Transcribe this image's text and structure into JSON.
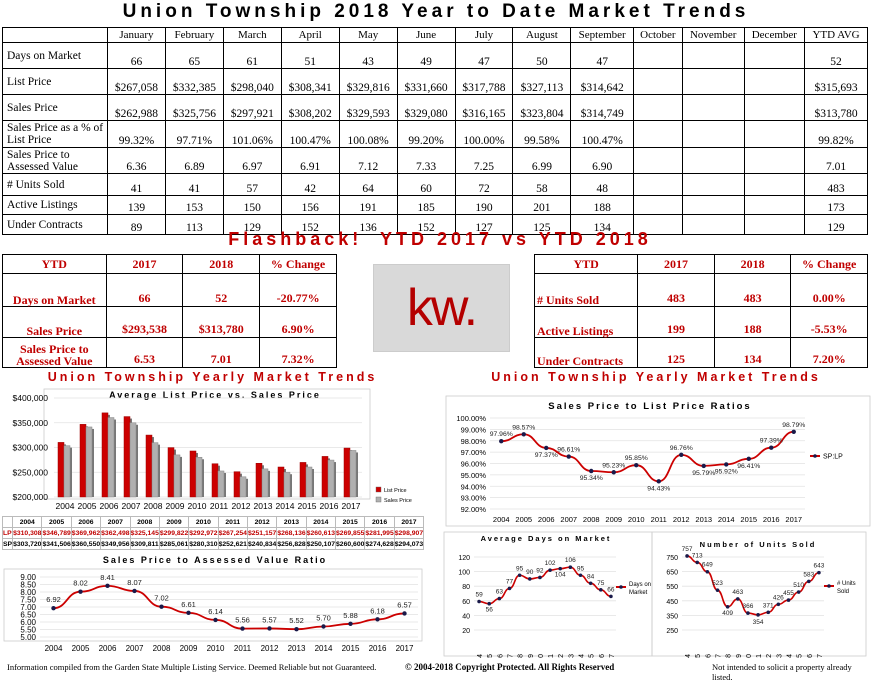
{
  "main_title": "Union Township 2018 Year to Date Market Trends",
  "main_table": {
    "months": [
      "January",
      "February",
      "March",
      "April",
      "May",
      "June",
      "July",
      "August",
      "September",
      "October",
      "November",
      "December",
      "YTD AVG"
    ],
    "rows": [
      {
        "label": "Days on Market",
        "values": [
          "66",
          "65",
          "61",
          "51",
          "43",
          "49",
          "47",
          "50",
          "47",
          "",
          "",
          "",
          "52"
        ]
      },
      {
        "label": "List Price",
        "values": [
          "$267,058",
          "$332,385",
          "$298,040",
          "$308,341",
          "$329,816",
          "$331,660",
          "$317,788",
          "$327,113",
          "$314,642",
          "",
          "",
          "",
          "$315,693"
        ]
      },
      {
        "label": "Sales Price",
        "values": [
          "$262,988",
          "$325,756",
          "$297,921",
          "$308,202",
          "$329,593",
          "$329,080",
          "$316,165",
          "$323,804",
          "$314,749",
          "",
          "",
          "",
          "$313,780"
        ]
      },
      {
        "label": "Sales Price as a % of List Price",
        "values": [
          "99.32%",
          "97.71%",
          "101.06%",
          "100.47%",
          "100.08%",
          "99.20%",
          "100.00%",
          "99.58%",
          "100.47%",
          "",
          "",
          "",
          "99.82%"
        ]
      },
      {
        "label": "Sales Price to Assessed Value",
        "values": [
          "6.36",
          "6.89",
          "6.97",
          "6.91",
          "7.12",
          "7.33",
          "7.25",
          "6.99",
          "6.90",
          "",
          "",
          "",
          "7.01"
        ]
      },
      {
        "label": "# Units Sold",
        "values": [
          "41",
          "41",
          "57",
          "42",
          "64",
          "60",
          "72",
          "58",
          "48",
          "",
          "",
          "",
          "483"
        ]
      },
      {
        "label": "Active Listings",
        "values": [
          "139",
          "153",
          "150",
          "156",
          "191",
          "185",
          "190",
          "201",
          "188",
          "",
          "",
          "",
          "173"
        ]
      },
      {
        "label": "Under Contracts",
        "values": [
          "89",
          "113",
          "129",
          "152",
          "136",
          "152",
          "127",
          "125",
          "134",
          "",
          "",
          "",
          "129"
        ]
      }
    ]
  },
  "flashback": {
    "title": "Flashback!  YTD 2017 vs YTD 2018",
    "headers": [
      "YTD",
      "2017",
      "2018",
      "% Change"
    ],
    "left_rows": [
      {
        "label": "Days on Market",
        "v2017": "66",
        "v2018": "52",
        "change": "-20.77%"
      },
      {
        "label": "Sales Price",
        "v2017": "$293,538",
        "v2018": "$313,780",
        "change": "6.90%"
      },
      {
        "label": "Sales Price to Assessed Value",
        "v2017": "6.53",
        "v2018": "7.01",
        "change": "7.32%"
      }
    ],
    "right_rows": [
      {
        "label": "# Units Sold",
        "v2017": "483",
        "v2018": "483",
        "change": "0.00%"
      },
      {
        "label": "Active Listings",
        "v2017": "199",
        "v2018": "188",
        "change": "-5.53%"
      },
      {
        "label": "Under Contracts",
        "v2017": "125",
        "v2018": "134",
        "change": "7.20%"
      }
    ],
    "logo_text": "kw."
  },
  "section_titles": {
    "left": "Union Township Yearly Market Trends",
    "right": "Union Township Yearly Market Trends"
  },
  "chart_data": [
    {
      "type": "bar",
      "title": "Average List Price vs. Sales Price",
      "categories": [
        "2004",
        "2005",
        "2006",
        "2007",
        "2008",
        "2009",
        "2010",
        "2011",
        "2012",
        "2013",
        "2014",
        "2015",
        "2016",
        "2017"
      ],
      "series": [
        {
          "name": "List Price",
          "values": [
            310308,
            346789,
            369962,
            362498,
            325145,
            299822,
            292972,
            267254,
            251157,
            268136,
            260613,
            269855,
            281995,
            298907
          ],
          "display": [
            "$310,308",
            "$346,789",
            "$369,962",
            "$362,498",
            "$325,145",
            "$299,822",
            "$292,972",
            "$267,254",
            "$251,157",
            "$268,136",
            "$260,613",
            "$269,855",
            "$281,995",
            "$298,907"
          ],
          "color": "#cc0000"
        },
        {
          "name": "Sales Price",
          "values": [
            303720,
            341506,
            360550,
            349956,
            309811,
            285061,
            280310,
            252621,
            240834,
            256828,
            250107,
            260600,
            274628,
            294073
          ],
          "display": [
            "$303,720",
            "$341,506",
            "$360,550",
            "$349,956",
            "$309,811",
            "$285,061",
            "$280,310",
            "$252,621",
            "$240,834",
            "$256,828",
            "$250,107",
            "$260,600",
            "$274,628",
            "$294,073"
          ],
          "color": "#b0b0b0"
        }
      ],
      "table_labels": [
        "LP",
        "SP"
      ],
      "yticks": [
        "$200,000",
        "$250,000",
        "$300,000",
        "$350,000",
        "$400,000"
      ],
      "ylim": [
        200000,
        400000
      ]
    },
    {
      "type": "line",
      "title": "Sales Price to Assessed Value Ratio",
      "x": [
        "2004",
        "2005",
        "2006",
        "2007",
        "2008",
        "2009",
        "2010",
        "2011",
        "2012",
        "2013",
        "2014",
        "2015",
        "2016",
        "2017"
      ],
      "values": [
        6.92,
        8.02,
        8.41,
        8.07,
        7.02,
        6.61,
        6.14,
        5.56,
        5.57,
        5.52,
        5.7,
        5.88,
        6.18,
        6.57
      ],
      "labels": [
        "6.92",
        "8.02",
        "8.41",
        "8.07",
        "7.02",
        "6.61",
        "6.14",
        "5.56",
        "5.57",
        "5.52",
        "5.70",
        "5.88",
        "6.18",
        "6.57"
      ],
      "yticks": [
        "5.00",
        "5.50",
        "6.00",
        "6.50",
        "7.00",
        "7.50",
        "8.00",
        "8.50",
        "9.00"
      ],
      "ylim": [
        5,
        9
      ],
      "color": "#cc0000"
    },
    {
      "type": "line",
      "title": "Sales Price to List Price Ratios",
      "x": [
        "2004",
        "2005",
        "2006",
        "2007",
        "2008",
        "2009",
        "2010",
        "2011",
        "2012",
        "2013",
        "2014",
        "2015",
        "2016",
        "2017"
      ],
      "values": [
        97.96,
        98.57,
        97.37,
        96.61,
        95.34,
        95.23,
        95.85,
        94.43,
        96.76,
        95.79,
        95.92,
        96.41,
        97.39,
        98.79
      ],
      "labels": [
        "97.96%",
        "98.57%",
        "97.37%",
        "96.61%",
        "95.34%",
        "95.23%",
        "95.85%",
        "94.43%",
        "96.76%",
        "95.79%",
        "95.92%",
        "96.41%",
        "97.39%",
        "98.79%"
      ],
      "yticks": [
        "92.00%",
        "93.00%",
        "94.00%",
        "95.00%",
        "96.00%",
        "97.00%",
        "98.00%",
        "99.00%",
        "100.00%"
      ],
      "ylim": [
        92,
        100
      ],
      "legend": "SP:LP",
      "color": "#cc0000"
    },
    {
      "type": "line",
      "title": "Average Days on Market",
      "x": [
        "2004",
        "2005",
        "2006",
        "2007",
        "2008",
        "2009",
        "2010",
        "2011",
        "2012",
        "2013",
        "2014",
        "2015",
        "2016",
        "2017"
      ],
      "values": [
        59,
        56,
        63,
        77,
        95,
        90,
        92,
        102,
        104,
        106,
        95,
        84,
        75,
        66
      ],
      "labels": [
        "59",
        "56",
        "63",
        "77",
        "95",
        "90",
        "92",
        "102",
        "104",
        "106",
        "95",
        "84",
        "75",
        "66"
      ],
      "yticks": [
        "20",
        "40",
        "60",
        "80",
        "100",
        "120"
      ],
      "ylim": [
        20,
        120
      ],
      "legend": "Days on Market",
      "color": "#cc0000"
    },
    {
      "type": "line",
      "title": "Number of Units Sold",
      "x": [
        "2004",
        "2005",
        "2006",
        "2007",
        "2008",
        "2009",
        "2010",
        "2011",
        "2012",
        "2013",
        "2014",
        "2015",
        "2016",
        "2017"
      ],
      "values": [
        757,
        713,
        649,
        523,
        409,
        463,
        366,
        354,
        371,
        426,
        455,
        510,
        583,
        643
      ],
      "labels": [
        "757",
        "713",
        "649",
        "523",
        "409",
        "463",
        "366",
        "354",
        "371",
        "426",
        "455",
        "510",
        "583",
        "643"
      ],
      "yticks": [
        "250",
        "350",
        "450",
        "550",
        "650",
        "750"
      ],
      "ylim": [
        250,
        750
      ],
      "legend": "# Units Sold",
      "color": "#cc0000"
    }
  ],
  "footer": {
    "left": "Information compiled from the Garden State Multiple Listing Service.  Deemed Reliable but not Guaranteed.",
    "center": "© 2004-2018 Copyright Protected.  All Rights Reserved",
    "right": "Not intended to solicit a property already listed."
  }
}
